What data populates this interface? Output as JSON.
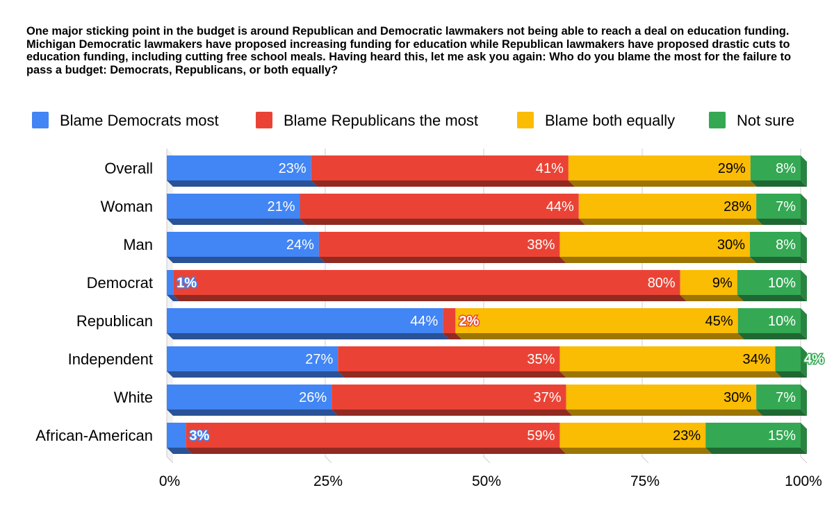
{
  "chart_data": {
    "type": "bar",
    "orientation": "horizontal",
    "stacked": "percent",
    "title": "One major sticking point in the budget is around Republican and Democratic lawmakers not being able to reach a deal on education funding. Michigan Democratic lawmakers have proposed increasing funding for education while Republican lawmakers have proposed drastic cuts to education funding, including cutting free school meals. Having heard this, let me ask you again: Who do you blame the most for the failure to pass a budget: Democrats, Republicans, or both equally?",
    "legend_position": "top",
    "categories": [
      "Overall",
      "Woman",
      "Man",
      "Democrat",
      "Republican",
      "Independent",
      "White",
      "African-American"
    ],
    "series": [
      {
        "name": "Blame Democrats most",
        "color": "#4285f4",
        "values": [
          23,
          21,
          24,
          1,
          44,
          27,
          26,
          3
        ]
      },
      {
        "name": "Blame Republicans the most",
        "color": "#ea4335",
        "values": [
          41,
          44,
          38,
          80,
          2,
          35,
          37,
          59
        ]
      },
      {
        "name": "Blame both equally",
        "color": "#fbbc04",
        "values": [
          29,
          28,
          30,
          9,
          45,
          34,
          30,
          23
        ]
      },
      {
        "name": "Not sure",
        "color": "#34a853",
        "values": [
          8,
          7,
          8,
          10,
          10,
          4,
          7,
          15
        ]
      }
    ],
    "xlim": [
      0,
      100
    ],
    "x_ticks": [
      "0%",
      "25%",
      "50%",
      "75%",
      "100%"
    ],
    "grid": true,
    "value_suffix": "%"
  }
}
